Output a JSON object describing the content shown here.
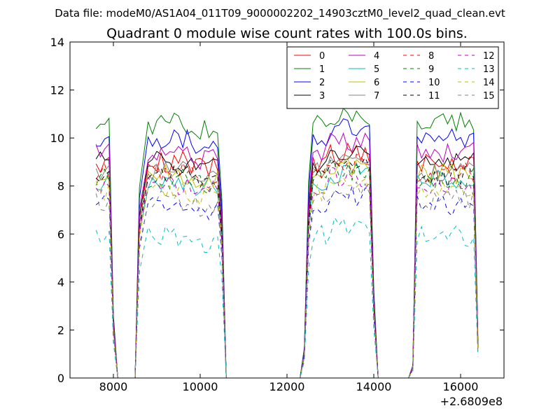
{
  "chart_data": {
    "type": "line",
    "suptitle": "Data file: modeM0/AS1A04_011T09_9000002202_14903cztM0_level2_quad_clean.evt",
    "title": "Quadrant 0 module wise count rates with 100.0s bins.",
    "xlabel": "",
    "ylabel": "",
    "xlim": [
      7000,
      17000
    ],
    "ylim": [
      0,
      14
    ],
    "x_offset_label": "+2.6809e8",
    "xticks": [
      8000,
      10000,
      12000,
      14000,
      16000
    ],
    "xtick_labels": [
      "8000",
      "10000",
      "12000",
      "14000",
      "16000"
    ],
    "yticks": [
      0,
      2,
      4,
      6,
      8,
      10,
      12,
      14
    ],
    "ytick_labels": [
      "0",
      "2",
      "4",
      "6",
      "8",
      "10",
      "12",
      "14"
    ],
    "grid": false,
    "legend_position": "top-right",
    "legend_columns": 4,
    "series": [
      {
        "name": "0",
        "color": "#ff0000",
        "dash": "solid",
        "base": 9.0
      },
      {
        "name": "1",
        "color": "#008000",
        "dash": "solid",
        "base": 10.6
      },
      {
        "name": "2",
        "color": "#0000ff",
        "dash": "solid",
        "base": 10.0
      },
      {
        "name": "3",
        "color": "#000000",
        "dash": "solid",
        "base": 9.0
      },
      {
        "name": "4",
        "color": "#bf00bf",
        "dash": "solid",
        "base": 9.4
      },
      {
        "name": "5",
        "color": "#00bfbf",
        "dash": "solid",
        "base": 8.2
      },
      {
        "name": "6",
        "color": "#bfbf00",
        "dash": "solid",
        "base": 8.5
      },
      {
        "name": "7",
        "color": "#808080",
        "dash": "solid",
        "base": 8.6
      },
      {
        "name": "8",
        "color": "#ff0000",
        "dash": "dashed",
        "base": 8.6
      },
      {
        "name": "9",
        "color": "#008000",
        "dash": "dashed",
        "base": 8.3
      },
      {
        "name": "10",
        "color": "#0000ff",
        "dash": "dashed",
        "base": 7.2
      },
      {
        "name": "11",
        "color": "#000000",
        "dash": "dashed",
        "base": 8.4
      },
      {
        "name": "12",
        "color": "#bf00bf",
        "dash": "dashed",
        "base": 8.0
      },
      {
        "name": "13",
        "color": "#00bfbf",
        "dash": "dashed",
        "base": 5.9
      },
      {
        "name": "14",
        "color": "#bfbf00",
        "dash": "dashed",
        "base": 7.8
      },
      {
        "name": "15",
        "color": "#808080",
        "dash": "dashed",
        "base": 7.4
      }
    ],
    "segments": [
      {
        "x_start": 7600,
        "x_end": 7900,
        "step": 100
      },
      {
        "x_start": 8800,
        "x_end": 10400,
        "step": 100
      },
      {
        "x_start": 12600,
        "x_end": 13900,
        "step": 100
      },
      {
        "x_start": 15000,
        "x_end": 16300,
        "step": 100
      }
    ],
    "zero_gaps": [
      {
        "x_start": 8100,
        "x_end": 8500
      },
      {
        "x_start": 10600,
        "x_end": 12300
      },
      {
        "x_start": 14100,
        "x_end": 14800
      }
    ],
    "edge_points": [
      {
        "x": 8000,
        "factor": 0.25
      },
      {
        "x": 8600,
        "factor": 0.75
      },
      {
        "x": 10500,
        "factor": 0.7
      },
      {
        "x": 12400,
        "factor": 0.12
      },
      {
        "x": 12500,
        "factor": 0.78
      },
      {
        "x": 14000,
        "factor": 0.35
      },
      {
        "x": 14900,
        "factor": 0.05
      },
      {
        "x": 16400,
        "factor": 0.15
      }
    ]
  }
}
